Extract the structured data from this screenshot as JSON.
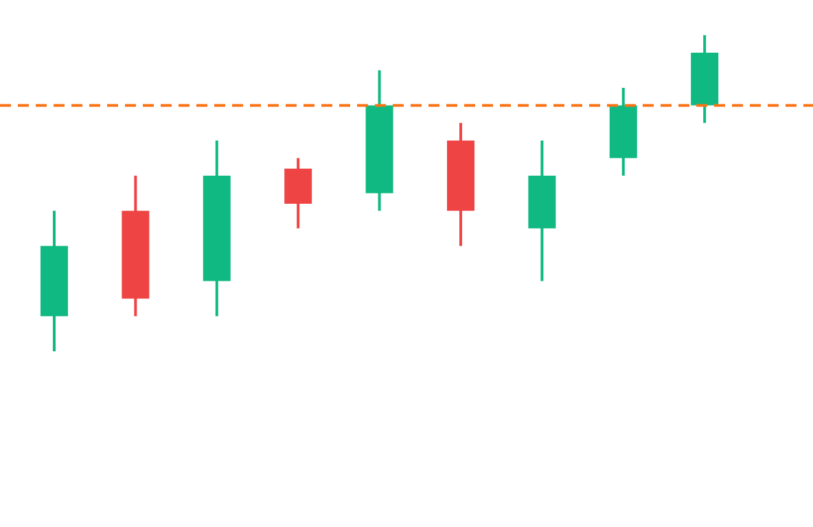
{
  "chart_data": {
    "type": "candlestick",
    "title": "",
    "xlabel": "",
    "ylabel": "",
    "ylim": [
      0,
      30
    ],
    "grid": false,
    "axes_visible": false,
    "candles": [
      {
        "open": 12,
        "high": 18,
        "low": 10,
        "close": 16
      },
      {
        "open": 18,
        "high": 20,
        "low": 12,
        "close": 13
      },
      {
        "open": 14,
        "high": 22,
        "low": 12,
        "close": 20
      },
      {
        "open": 20.4,
        "high": 21,
        "low": 17,
        "close": 18.4
      },
      {
        "open": 19,
        "high": 26,
        "low": 18,
        "close": 24
      },
      {
        "open": 22,
        "high": 23,
        "low": 16,
        "close": 18
      },
      {
        "open": 17,
        "high": 22,
        "low": 14,
        "close": 20
      },
      {
        "open": 21,
        "high": 25,
        "low": 20,
        "close": 24
      },
      {
        "open": 24,
        "high": 28,
        "low": 23,
        "close": 27
      }
    ],
    "reference_line": {
      "value": 24,
      "style": "dashed"
    },
    "colors": {
      "up": "#10b981",
      "down": "#ef4444",
      "reference": "#f97316"
    }
  }
}
